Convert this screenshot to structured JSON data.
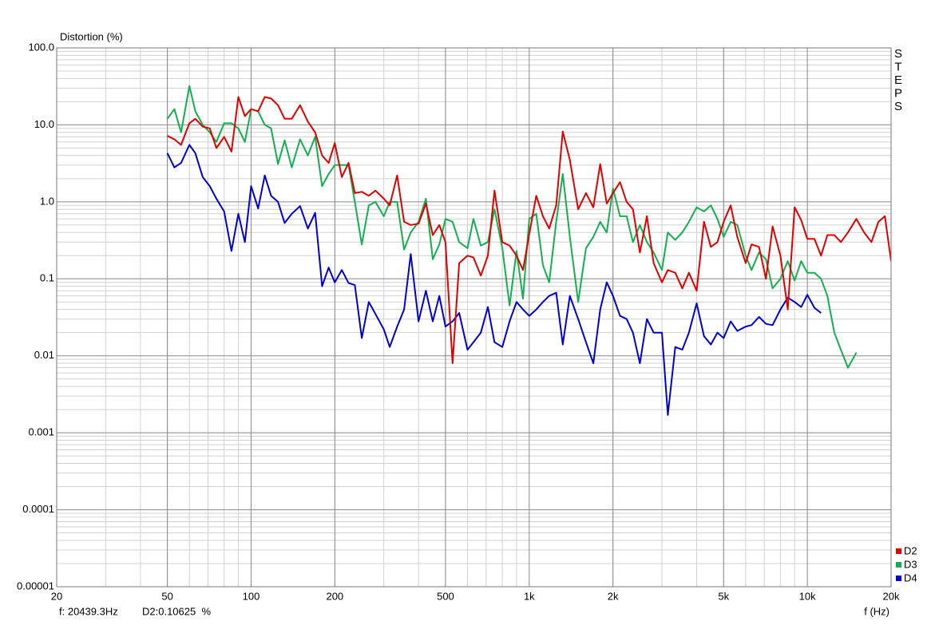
{
  "chart_data": {
    "type": "line",
    "y_label": "Distortion (%)",
    "x_label": "f (Hz)",
    "side_text": "STEPS",
    "status": [
      "f: 20439.3Hz",
      "D2:0.10625  %"
    ],
    "xlog": true,
    "ylog": true,
    "grid": true,
    "minor_grid": true,
    "legend": "lower right",
    "xlim": [
      20,
      20000
    ],
    "ylim": [
      1e-05,
      100
    ],
    "xticks": [
      20,
      50,
      100,
      200,
      500,
      {
        "value": 1000,
        "label": "1k"
      },
      {
        "value": 2000,
        "label": "2k"
      },
      {
        "value": 5000,
        "label": "5k"
      },
      {
        "value": 10000,
        "label": "10k"
      },
      {
        "value": 20000,
        "label": "20k"
      }
    ],
    "yticks": [
      {
        "value": 100,
        "label": "100.0"
      },
      {
        "value": 10,
        "label": "10.0"
      },
      {
        "value": 1,
        "label": "1.0"
      },
      0.1,
      0.01,
      0.001,
      0.0001,
      1e-05
    ],
    "x": [
      50,
      53,
      56,
      60,
      63,
      67,
      71,
      75,
      80,
      85,
      90,
      95,
      100,
      106,
      112,
      118,
      125,
      132,
      140,
      150,
      160,
      170,
      180,
      190,
      200,
      212,
      224,
      236,
      250,
      265,
      280,
      300,
      315,
      335,
      355,
      375,
      400,
      425,
      450,
      475,
      500,
      530,
      560,
      600,
      630,
      670,
      710,
      750,
      800,
      850,
      900,
      950,
      1000,
      1060,
      1120,
      1180,
      1250,
      1320,
      1400,
      1500,
      1600,
      1700,
      1800,
      1900,
      2000,
      2120,
      2240,
      2360,
      2500,
      2650,
      2800,
      3000,
      3150,
      3350,
      3550,
      3750,
      4000,
      4250,
      4500,
      4750,
      5000,
      5300,
      5600,
      6000,
      6300,
      6700,
      7100,
      7500,
      8000,
      8500,
      9000,
      9500,
      10000,
      10600,
      11200,
      11800,
      12500,
      13200,
      14000,
      15000,
      16000,
      17000,
      18000,
      19000,
      20000
    ],
    "series": [
      {
        "name": "D4",
        "color": "#0000d0",
        "values": [
          4.3,
          2.8,
          3.2,
          5.5,
          4.3,
          2.1,
          1.6,
          1.1,
          0.75,
          0.23,
          0.7,
          0.3,
          1.6,
          0.82,
          2.2,
          1.2,
          1.0,
          0.53,
          0.7,
          0.88,
          0.45,
          0.72,
          0.08,
          0.14,
          0.09,
          0.13,
          0.088,
          0.083,
          0.017,
          0.05,
          0.035,
          0.022,
          0.013,
          0.024,
          0.04,
          0.21,
          0.028,
          0.07,
          0.028,
          0.06,
          0.024,
          0.028,
          0.036,
          0.012,
          0.015,
          0.02,
          0.043,
          0.015,
          0.013,
          0.028,
          0.05,
          0.04,
          0.033,
          0.04,
          0.05,
          0.06,
          0.066,
          0.014,
          0.06,
          0.03,
          0.015,
          0.008,
          0.04,
          0.09,
          0.06,
          0.033,
          0.03,
          0.02,
          0.008,
          0.03,
          0.02,
          0.02,
          0.0017,
          0.013,
          0.012,
          0.02,
          0.048,
          0.018,
          0.014,
          0.02,
          0.017,
          0.028,
          0.021,
          0.024,
          0.025,
          0.032,
          0.026,
          0.025,
          0.04,
          0.057,
          0.05,
          0.043,
          0.062,
          0.042,
          0.036,
          null,
          null,
          null,
          null,
          null,
          null,
          null,
          null,
          null,
          null
        ]
      },
      {
        "name": "D3",
        "color": "#12b050",
        "values": [
          12,
          16,
          8,
          32,
          15,
          10,
          8,
          6,
          10.5,
          10.5,
          9,
          6,
          16,
          15,
          10,
          9,
          3.1,
          6.3,
          2.8,
          6.5,
          4,
          7,
          1.6,
          2.3,
          3,
          3,
          3,
          1,
          0.28,
          0.9,
          1.0,
          0.65,
          1.0,
          1.0,
          0.24,
          0.4,
          0.55,
          1.1,
          0.18,
          0.28,
          0.6,
          0.55,
          0.3,
          0.25,
          0.6,
          0.27,
          0.3,
          0.8,
          0.25,
          0.045,
          0.23,
          0.055,
          0.6,
          0.7,
          0.15,
          0.09,
          0.55,
          2.3,
          0.35,
          0.05,
          0.25,
          0.35,
          0.55,
          0.4,
          1.5,
          0.65,
          0.65,
          0.3,
          0.5,
          0.3,
          0.22,
          0.13,
          0.4,
          0.32,
          0.4,
          0.55,
          0.85,
          0.75,
          0.9,
          0.6,
          0.35,
          0.55,
          0.5,
          0.2,
          0.13,
          0.22,
          0.18,
          0.075,
          0.1,
          0.17,
          0.095,
          0.17,
          0.12,
          0.12,
          0.1,
          0.06,
          0.02,
          0.012,
          0.007,
          0.011,
          null,
          null,
          null,
          null,
          null
        ]
      },
      {
        "name": "D2",
        "color": "#e00000",
        "values": [
          7.2,
          6.5,
          5.5,
          10.5,
          12,
          9.5,
          9,
          5,
          7,
          4.5,
          23,
          13,
          16,
          15,
          23,
          22,
          18,
          12,
          12,
          18,
          11,
          8,
          4,
          3.2,
          5.8,
          2.1,
          3.2,
          1.3,
          1.35,
          1.2,
          1.4,
          1.1,
          0.9,
          2.2,
          0.55,
          0.5,
          0.52,
          0.95,
          0.37,
          0.5,
          0.3,
          0.008,
          0.16,
          0.2,
          0.19,
          0.11,
          0.2,
          1.4,
          0.3,
          0.27,
          0.2,
          0.13,
          0.38,
          1.2,
          0.65,
          0.45,
          0.9,
          8.2,
          3.5,
          0.8,
          1.3,
          0.85,
          3.1,
          0.95,
          1.3,
          1.8,
          1.0,
          0.8,
          0.22,
          0.65,
          0.16,
          0.09,
          0.13,
          0.12,
          0.075,
          0.12,
          0.07,
          0.55,
          0.26,
          0.3,
          0.55,
          0.9,
          0.35,
          0.16,
          0.28,
          0.26,
          0.1,
          0.48,
          0.2,
          0.04,
          0.85,
          0.58,
          0.33,
          0.33,
          0.2,
          0.37,
          0.37,
          0.3,
          0.4,
          0.6,
          0.4,
          0.3,
          0.55,
          0.65,
          0.17
        ]
      }
    ]
  }
}
